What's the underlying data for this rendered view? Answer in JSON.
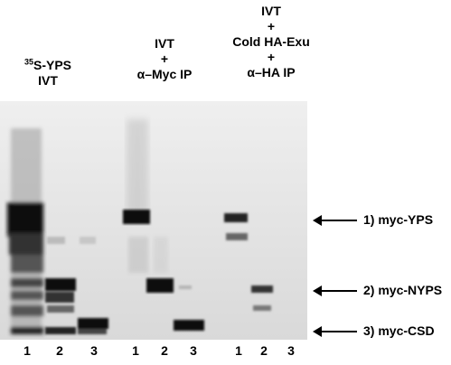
{
  "headers": {
    "group1": {
      "line1_sup": "35",
      "line1": "S-YPS",
      "line2": "IVT"
    },
    "group2": {
      "line1": "IVT",
      "line2": "+",
      "line3": "α–Myc IP"
    },
    "group3": {
      "line1": "IVT",
      "line2": "+",
      "line3": "Cold HA-Exu",
      "line4": "+",
      "line5": "α–HA IP"
    }
  },
  "lanes": [
    "1",
    "2",
    "3",
    "1",
    "2",
    "3",
    "1",
    "2",
    "3"
  ],
  "bands": [
    {
      "label": "1) myc-YPS"
    },
    {
      "label": "2) myc-NYPS"
    },
    {
      "label": "3) myc-CSD"
    }
  ]
}
